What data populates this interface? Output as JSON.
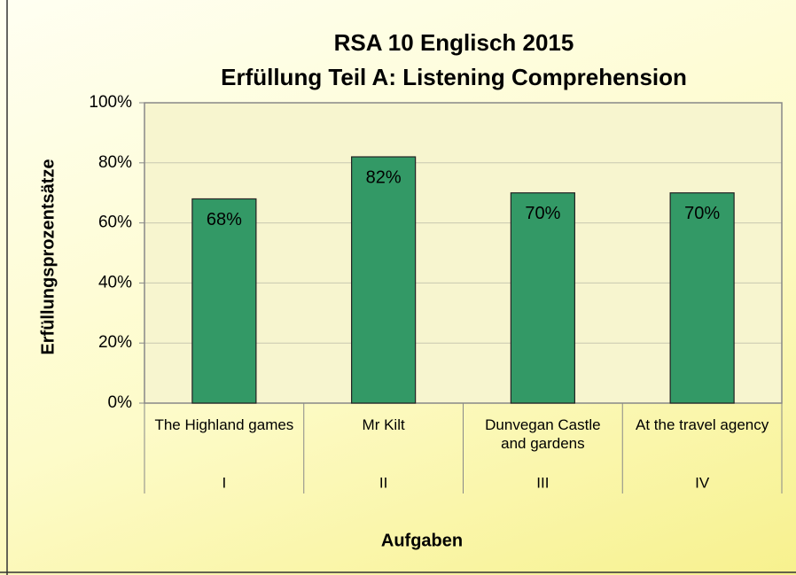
{
  "chart_data": {
    "type": "bar",
    "title": "RSA 10 Englisch 2015",
    "subtitle": "Erfüllung Teil A: Listening Comprehension",
    "categories": [
      "The Highland games",
      "Mr Kilt",
      "Dunvegan Castle and gardens",
      "At the travel agency"
    ],
    "category_groups": [
      "I",
      "II",
      "III",
      "IV"
    ],
    "values": [
      68,
      82,
      70,
      70
    ],
    "value_labels": [
      "68%",
      "82%",
      "70%",
      "70%"
    ],
    "color": "#339966",
    "ylim": [
      0,
      100
    ],
    "yticks": [
      {
        "value": 0,
        "label": "0%"
      },
      {
        "value": 20,
        "label": "20%"
      },
      {
        "value": 40,
        "label": "40%"
      },
      {
        "value": 60,
        "label": "60%"
      },
      {
        "value": 80,
        "label": "80%"
      },
      {
        "value": 100,
        "label": "100%"
      }
    ],
    "xlabel": "Aufgaben",
    "ylabel": "Erfüllungsprozentsätze",
    "grid": true
  }
}
